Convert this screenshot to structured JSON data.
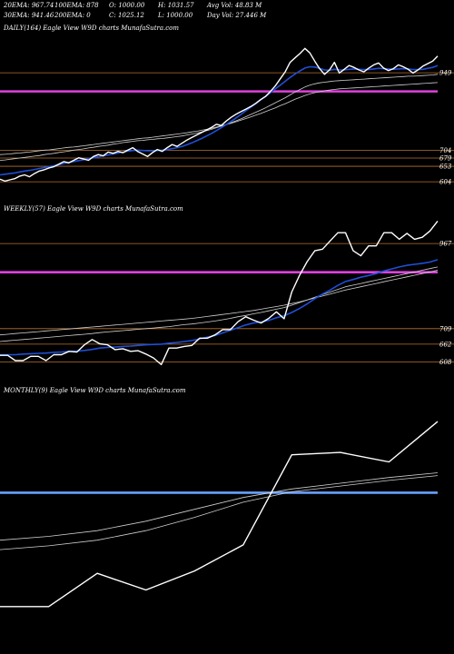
{
  "header": {
    "ema20": "20EMA: 967.74",
    "ema100": "100EMA: 878",
    "open": "O: 1000.00",
    "high": "H: 1031.57",
    "avgvol": "Avg Vol: 48.83 M",
    "ema30": "30EMA: 941.46",
    "ema200": "200EMA: 0",
    "close": "C: 1025.12",
    "low": "L: 1000.00",
    "dayvol": "Day Vol: 27.446  M"
  },
  "colors": {
    "background": "#000000",
    "price": "#ffffff",
    "ema_fast": "#1f4fd8",
    "ema_slow": "#cfcfcf",
    "level_line": "#b8722c",
    "support_daily_weekly": "#e040e0",
    "support_monthly": "#6aa0ff"
  },
  "chart_data": [
    {
      "type": "line",
      "title": "DAILY(164) Eagle  View  W9D charts MunafaSutra.com",
      "levels": [
        949,
        704,
        679,
        653,
        604
      ],
      "level_labels": [
        "949",
        "704",
        "679",
        "653",
        "604"
      ],
      "support_level": 890,
      "ylim": [
        590,
        1070
      ],
      "series": [
        {
          "key": "price",
          "values": [
            612,
            606,
            610,
            614,
            622,
            626,
            620,
            630,
            638,
            642,
            648,
            652,
            660,
            668,
            664,
            672,
            680,
            676,
            672,
            684,
            690,
            686,
            698,
            694,
            700,
            696,
            704,
            712,
            700,
            692,
            684,
            696,
            706,
            700,
            712,
            722,
            716,
            726,
            736,
            744,
            752,
            760,
            768,
            776,
            786,
            782,
            796,
            808,
            818,
            826,
            834,
            842,
            852,
            864,
            874,
            890,
            908,
            930,
            952,
            982,
            996,
            1010,
            1026,
            1012,
            986,
            962,
            944,
            958,
            982,
            948,
            960,
            972,
            966,
            958,
            952,
            964,
            974,
            980,
            964,
            956,
            962,
            974,
            968,
            960,
            948,
            958,
            970,
            978,
            986,
            1002
          ]
        },
        {
          "key": "ema_fast",
          "values": [
            626,
            628,
            630,
            632,
            635,
            638,
            640,
            643,
            646,
            649,
            652,
            655,
            658,
            662,
            665,
            668,
            671,
            674,
            677,
            680,
            683,
            686,
            689,
            692,
            695,
            698,
            701,
            703,
            704,
            703,
            702,
            702,
            703,
            704,
            706,
            709,
            712,
            716,
            721,
            727,
            734,
            741,
            749,
            757,
            766,
            775,
            785,
            795,
            806,
            817,
            829,
            840,
            851,
            863,
            874,
            886,
            898,
            910,
            922,
            934,
            945,
            955,
            964,
            968,
            967,
            963,
            958,
            957,
            960,
            958,
            958,
            960,
            961,
            960,
            959,
            959,
            961,
            963,
            962,
            961,
            960,
            961,
            962,
            961,
            959,
            959,
            960,
            963,
            966,
            972
          ]
        },
        {
          "key": "ema_slow_1",
          "values": [
            672,
            673,
            675,
            677,
            679,
            681,
            683,
            685,
            687,
            690,
            692,
            694,
            697,
            699,
            701,
            704,
            706,
            708,
            711,
            713,
            716,
            718,
            720,
            723,
            725,
            728,
            730,
            732,
            734,
            735,
            737,
            738,
            740,
            741,
            743,
            745,
            747,
            749,
            752,
            755,
            758,
            762,
            766,
            770,
            775,
            780,
            785,
            791,
            797,
            803,
            810,
            817,
            824,
            831,
            838,
            846,
            854,
            862,
            870,
            879,
            888,
            896,
            904,
            910,
            914,
            917,
            919,
            921,
            923,
            924,
            925,
            926,
            927,
            928,
            929,
            930,
            931,
            932,
            933,
            934,
            935,
            936,
            937,
            938,
            938,
            939,
            940,
            941,
            942,
            944
          ]
        },
        {
          "key": "ema_slow_2",
          "values": [
            690,
            691,
            692,
            694,
            695,
            697,
            698,
            700,
            702,
            704,
            705,
            707,
            709,
            711,
            713,
            714,
            716,
            718,
            720,
            722,
            724,
            726,
            728,
            730,
            732,
            734,
            736,
            738,
            740,
            742,
            743,
            745,
            747,
            749,
            751,
            753,
            755,
            757,
            759,
            762,
            764,
            767,
            770,
            773,
            777,
            781,
            785,
            789,
            794,
            799,
            804,
            809,
            815,
            820,
            826,
            832,
            838,
            845,
            851,
            858,
            865,
            871,
            877,
            882,
            886,
            889,
            892,
            894,
            896,
            898,
            899,
            900,
            901,
            902,
            903,
            904,
            905,
            906,
            907,
            908,
            909,
            910,
            911,
            912,
            913,
            914,
            915,
            916,
            917,
            918
          ]
        }
      ]
    },
    {
      "type": "line",
      "title": "WEEKLY(57) Eagle  View  W9D charts MunafaSutra.com",
      "levels": [
        967,
        709,
        662,
        608
      ],
      "level_labels": [
        "967",
        "709",
        "662",
        "608"
      ],
      "support_level": 880,
      "ylim": [
        590,
        1050
      ],
      "series": [
        {
          "key": "price",
          "values": [
            628,
            628,
            612,
            612,
            625,
            625,
            612,
            630,
            630,
            640,
            638,
            660,
            676,
            663,
            660,
            645,
            648,
            640,
            642,
            632,
            620,
            600,
            650,
            650,
            655,
            658,
            680,
            680,
            690,
            706,
            706,
            730,
            745,
            735,
            726,
            740,
            760,
            739,
            820,
            870,
            912,
            945,
            950,
            975,
            1000,
            1000,
            945,
            930,
            960,
            960,
            1000,
            1000,
            980,
            998,
            980,
            986,
            1005,
            1035
          ]
        },
        {
          "key": "ema_fast",
          "values": [
            630,
            630,
            630,
            632,
            633,
            634,
            635,
            637,
            638,
            640,
            641,
            643,
            646,
            650,
            652,
            653,
            655,
            656,
            658,
            660,
            661,
            662,
            665,
            667,
            670,
            673,
            678,
            683,
            688,
            696,
            704,
            712,
            720,
            726,
            729,
            734,
            742,
            748,
            758,
            770,
            784,
            800,
            814,
            826,
            840,
            852,
            858,
            865,
            870,
            876,
            884,
            890,
            896,
            901,
            904,
            907,
            911,
            918
          ]
        },
        {
          "key": "ema_slow_1",
          "values": [
            670,
            672,
            674,
            676,
            678,
            680,
            682,
            684,
            686,
            688,
            690,
            692,
            694,
            697,
            699,
            701,
            703,
            705,
            707,
            709,
            711,
            713,
            715,
            718,
            721,
            723,
            726,
            729,
            732,
            736,
            740,
            745,
            749,
            754,
            758,
            763,
            768,
            773,
            780,
            788,
            796,
            804,
            812,
            820,
            828,
            836,
            841,
            846,
            851,
            856,
            861,
            866,
            871,
            876,
            881,
            886,
            891,
            896
          ]
        },
        {
          "key": "ema_slow_2",
          "values": [
            690,
            692,
            694,
            696,
            698,
            700,
            702,
            704,
            706,
            708,
            710,
            712,
            714,
            716,
            718,
            720,
            722,
            724,
            726,
            728,
            730,
            732,
            734,
            736,
            738,
            740,
            743,
            746,
            749,
            752,
            755,
            758,
            761,
            764,
            768,
            772,
            776,
            780,
            785,
            790,
            796,
            802,
            808,
            814,
            820,
            826,
            831,
            836,
            841,
            846,
            851,
            856,
            861,
            866,
            871,
            876,
            881,
            886
          ]
        }
      ]
    },
    {
      "type": "line",
      "title": "MONTHLY(9) Eagle  View  W9D charts MunafaSutra.com",
      "support_level": 900,
      "ylim": [
        560,
        1100
      ],
      "series": [
        {
          "key": "price",
          "values": [
            660,
            660,
            730,
            695,
            735,
            790,
            980,
            985,
            965,
            1050
          ]
        },
        {
          "key": "ema_slow_1",
          "values": [
            800,
            808,
            820,
            840,
            865,
            890,
            908,
            920,
            932,
            942
          ]
        },
        {
          "key": "ema_slow_2",
          "values": [
            780,
            788,
            800,
            820,
            848,
            880,
            902,
            914,
            926,
            936
          ]
        }
      ]
    }
  ]
}
